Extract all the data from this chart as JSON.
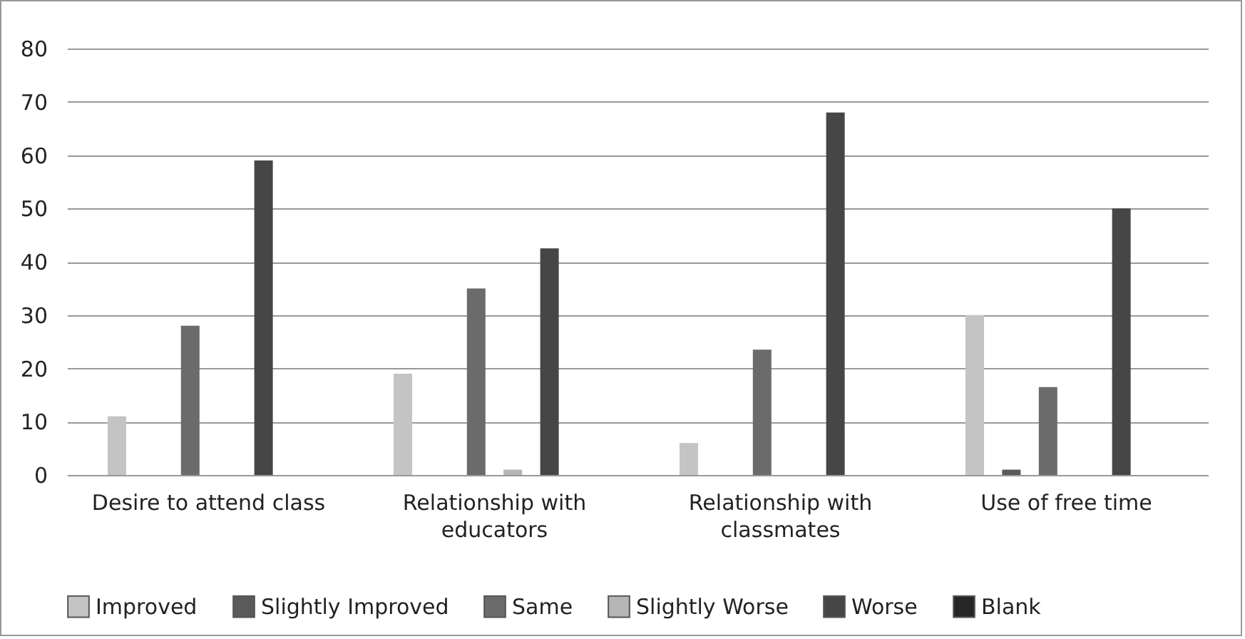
{
  "chart_data": {
    "type": "bar",
    "categories": [
      "Desire to attend class",
      "Relationship with educators",
      "Relationship with classmates",
      "Use of free time"
    ],
    "series": [
      {
        "name": "Improved",
        "color": "#c4c4c4",
        "values": [
          11,
          19,
          6,
          30
        ]
      },
      {
        "name": "Slightly Improved",
        "color": "#5a5a5a",
        "values": [
          0,
          0,
          0,
          1
        ]
      },
      {
        "name": "Same",
        "color": "#6b6b6b",
        "values": [
          28,
          35,
          23.5,
          16.5
        ]
      },
      {
        "name": "Slightly Worse",
        "color": "#b5b5b5",
        "values": [
          0,
          1,
          0,
          0
        ]
      },
      {
        "name": "Worse",
        "color": "#464646",
        "values": [
          59,
          42.5,
          68,
          50
        ]
      },
      {
        "name": "Blank",
        "color": "#262626",
        "values": [
          0,
          0,
          0,
          0
        ]
      }
    ],
    "ylim": [
      0,
      80
    ],
    "yticks": [
      0,
      10,
      20,
      30,
      40,
      50,
      60,
      70,
      80
    ],
    "grid": "y",
    "legend": "bottom"
  }
}
